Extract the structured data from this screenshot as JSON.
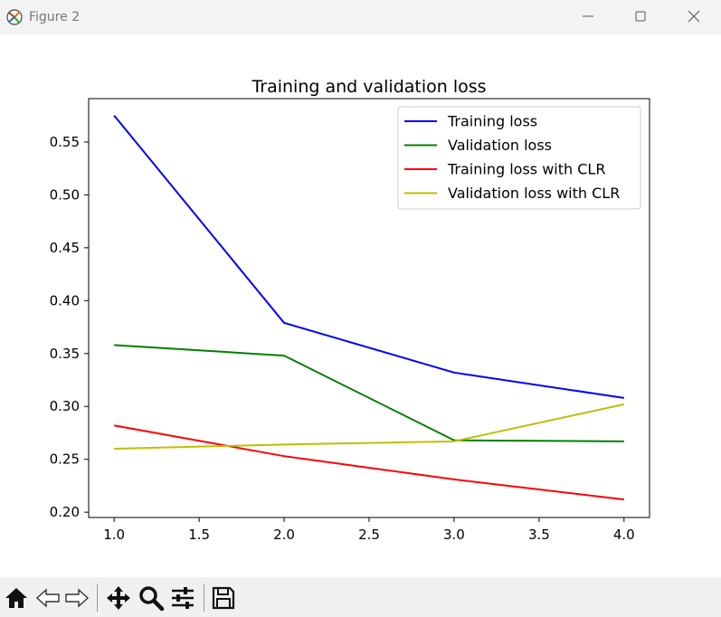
{
  "window": {
    "title": "Figure 2"
  },
  "toolbar": {
    "buttons": [
      {
        "name": "home-icon"
      },
      {
        "name": "back-icon"
      },
      {
        "name": "forward-icon"
      },
      {
        "name": "pan-icon"
      },
      {
        "name": "zoom-icon"
      },
      {
        "name": "configure-subplots-icon"
      },
      {
        "name": "save-icon"
      }
    ]
  },
  "chart_data": {
    "type": "line",
    "title": "Training and validation loss",
    "xlabel": "",
    "ylabel": "",
    "x": [
      1.0,
      2.0,
      3.0,
      4.0
    ],
    "xlim": [
      0.85,
      4.15
    ],
    "ylim": [
      0.195,
      0.591
    ],
    "xticks": [
      1.0,
      1.5,
      2.0,
      2.5,
      3.0,
      3.5,
      4.0
    ],
    "xtick_labels": [
      "1.0",
      "1.5",
      "2.0",
      "2.5",
      "3.0",
      "3.5",
      "4.0"
    ],
    "yticks": [
      0.2,
      0.25,
      0.3,
      0.35,
      0.4,
      0.45,
      0.5,
      0.55
    ],
    "ytick_labels": [
      "0.20",
      "0.25",
      "0.30",
      "0.35",
      "0.40",
      "0.45",
      "0.50",
      "0.55"
    ],
    "grid": false,
    "legend_position": "upper right",
    "series": [
      {
        "name": "Training loss",
        "color": "#0000ff",
        "values": [
          0.575,
          0.379,
          0.332,
          0.308
        ]
      },
      {
        "name": "Validation loss",
        "color": "#008000",
        "values": [
          0.358,
          0.348,
          0.268,
          0.267
        ]
      },
      {
        "name": "Training loss with CLR",
        "color": "#ff0000",
        "values": [
          0.282,
          0.253,
          0.231,
          0.212
        ]
      },
      {
        "name": "Validation loss with CLR",
        "color": "#bfbf00",
        "values": [
          0.26,
          0.264,
          0.267,
          0.302
        ]
      }
    ]
  }
}
